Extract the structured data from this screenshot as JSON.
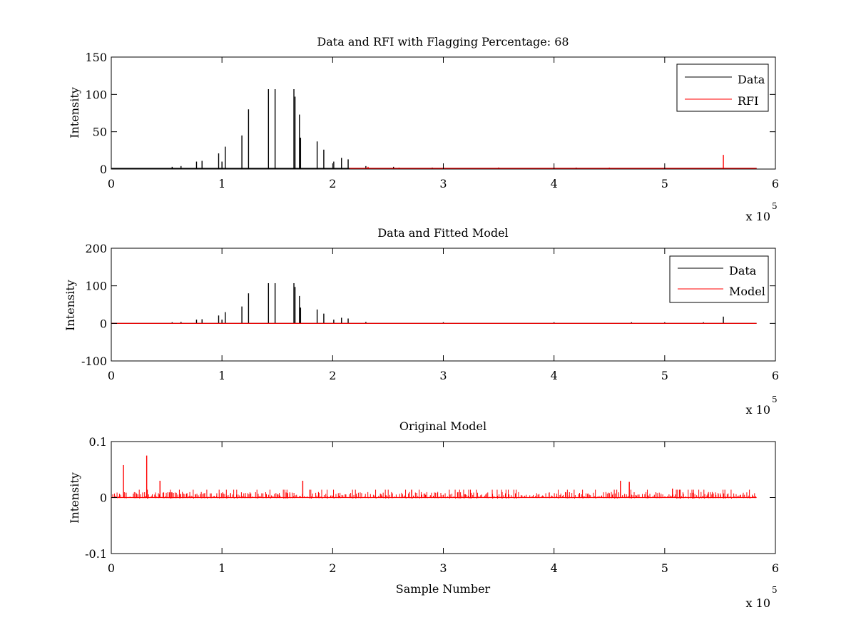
{
  "chart_data": [
    {
      "type": "line",
      "title": "Data and RFI with Flagging Percentage: 68",
      "xlabel": "",
      "ylabel": "Intensity",
      "xlim": [
        0,
        600000
      ],
      "ylim": [
        0,
        150
      ],
      "xticks": [
        0,
        100000,
        200000,
        300000,
        400000,
        500000,
        600000
      ],
      "xtick_labels": [
        "0",
        "1",
        "2",
        "3",
        "4",
        "5",
        "6"
      ],
      "yticks": [
        0,
        50,
        100,
        150
      ],
      "ytick_labels": [
        "0",
        "50",
        "100",
        "150"
      ],
      "x_exponent_label": {
        "base": "x 10",
        "exponent": "5"
      },
      "grid": false,
      "legend_position": "top-right",
      "series": [
        {
          "name": "Data",
          "color": "#000000",
          "baseline": 1,
          "x_end": 583000,
          "spikes": [
            [
              55000,
              3
            ],
            [
              63000,
              4
            ],
            [
              77000,
              10
            ],
            [
              82000,
              11
            ],
            [
              97000,
              21
            ],
            [
              100000,
              10
            ],
            [
              103000,
              30
            ],
            [
              118000,
              45
            ],
            [
              124000,
              80
            ],
            [
              142000,
              107
            ],
            [
              148000,
              107
            ],
            [
              165000,
              107
            ],
            [
              166000,
              97
            ],
            [
              170000,
              73
            ],
            [
              171000,
              42
            ],
            [
              186000,
              37
            ],
            [
              192000,
              26
            ],
            [
              201000,
              10
            ],
            [
              208000,
              15
            ],
            [
              214000,
              13
            ],
            [
              230000,
              4
            ],
            [
              255000,
              3
            ],
            [
              290000,
              2
            ],
            [
              350000,
              2
            ],
            [
              420000,
              2
            ]
          ]
        },
        {
          "name": "RFI",
          "color": "#ff0000",
          "baseline": 1,
          "x_start": 215000,
          "x_end": 583000,
          "spikes": [
            [
              232000,
              3
            ],
            [
              260000,
              2
            ],
            [
              300000,
              2
            ],
            [
              350000,
              2
            ],
            [
              400000,
              2
            ],
            [
              450000,
              2
            ],
            [
              500000,
              2
            ],
            [
              553000,
              19
            ]
          ]
        }
      ]
    },
    {
      "type": "line",
      "title": "Data and Fitted Model",
      "xlabel": "",
      "ylabel": "Intensity",
      "xlim": [
        0,
        600000
      ],
      "ylim": [
        -100,
        200
      ],
      "xticks": [
        0,
        100000,
        200000,
        300000,
        400000,
        500000,
        600000
      ],
      "xtick_labels": [
        "0",
        "1",
        "2",
        "3",
        "4",
        "5",
        "6"
      ],
      "yticks": [
        -100,
        0,
        100,
        200
      ],
      "ytick_labels": [
        "-100",
        "0",
        "100",
        "200"
      ],
      "x_exponent_label": {
        "base": "x 10",
        "exponent": "5"
      },
      "grid": false,
      "legend_position": "top-right",
      "series": [
        {
          "name": "Data",
          "color": "#000000",
          "baseline": 0,
          "x_end": 583000,
          "spikes": [
            [
              55000,
              3
            ],
            [
              63000,
              4
            ],
            [
              77000,
              10
            ],
            [
              82000,
              11
            ],
            [
              97000,
              21
            ],
            [
              100000,
              10
            ],
            [
              103000,
              30
            ],
            [
              118000,
              45
            ],
            [
              124000,
              80
            ],
            [
              142000,
              107
            ],
            [
              148000,
              107
            ],
            [
              165000,
              107
            ],
            [
              166000,
              97
            ],
            [
              170000,
              73
            ],
            [
              171000,
              42
            ],
            [
              186000,
              37
            ],
            [
              192000,
              26
            ],
            [
              201000,
              10
            ],
            [
              208000,
              15
            ],
            [
              214000,
              13
            ],
            [
              230000,
              4
            ],
            [
              300000,
              3
            ],
            [
              400000,
              3
            ],
            [
              470000,
              3
            ],
            [
              500000,
              3
            ],
            [
              535000,
              3
            ],
            [
              553000,
              18
            ]
          ]
        },
        {
          "name": "Model",
          "color": "#ff0000",
          "baseline": 0,
          "x_end": 583000,
          "spikes": []
        }
      ]
    },
    {
      "type": "line",
      "title": "Original Model",
      "xlabel": "Sample Number",
      "ylabel": "Intensity",
      "xlim": [
        0,
        600000
      ],
      "ylim": [
        -0.1,
        0.1
      ],
      "xticks": [
        0,
        100000,
        200000,
        300000,
        400000,
        500000,
        600000
      ],
      "xtick_labels": [
        "0",
        "1",
        "2",
        "3",
        "4",
        "5",
        "6"
      ],
      "yticks": [
        -0.1,
        0,
        0.1
      ],
      "ytick_labels": [
        "-0.1",
        "0",
        "0.1"
      ],
      "x_exponent_label": {
        "base": "x 10",
        "exponent": "5"
      },
      "grid": false,
      "series": [
        {
          "name": "",
          "color": "#ff0000",
          "baseline": 0,
          "x_end": 583000,
          "noise_amplitude": 0.01,
          "spikes": [
            [
              11000,
              0.058
            ],
            [
              32000,
              0.075
            ],
            [
              44000,
              0.03
            ],
            [
              173000,
              0.03
            ],
            [
              460000,
              0.03
            ],
            [
              468000,
              0.028
            ],
            [
              507000,
              0.016
            ]
          ]
        }
      ]
    }
  ]
}
